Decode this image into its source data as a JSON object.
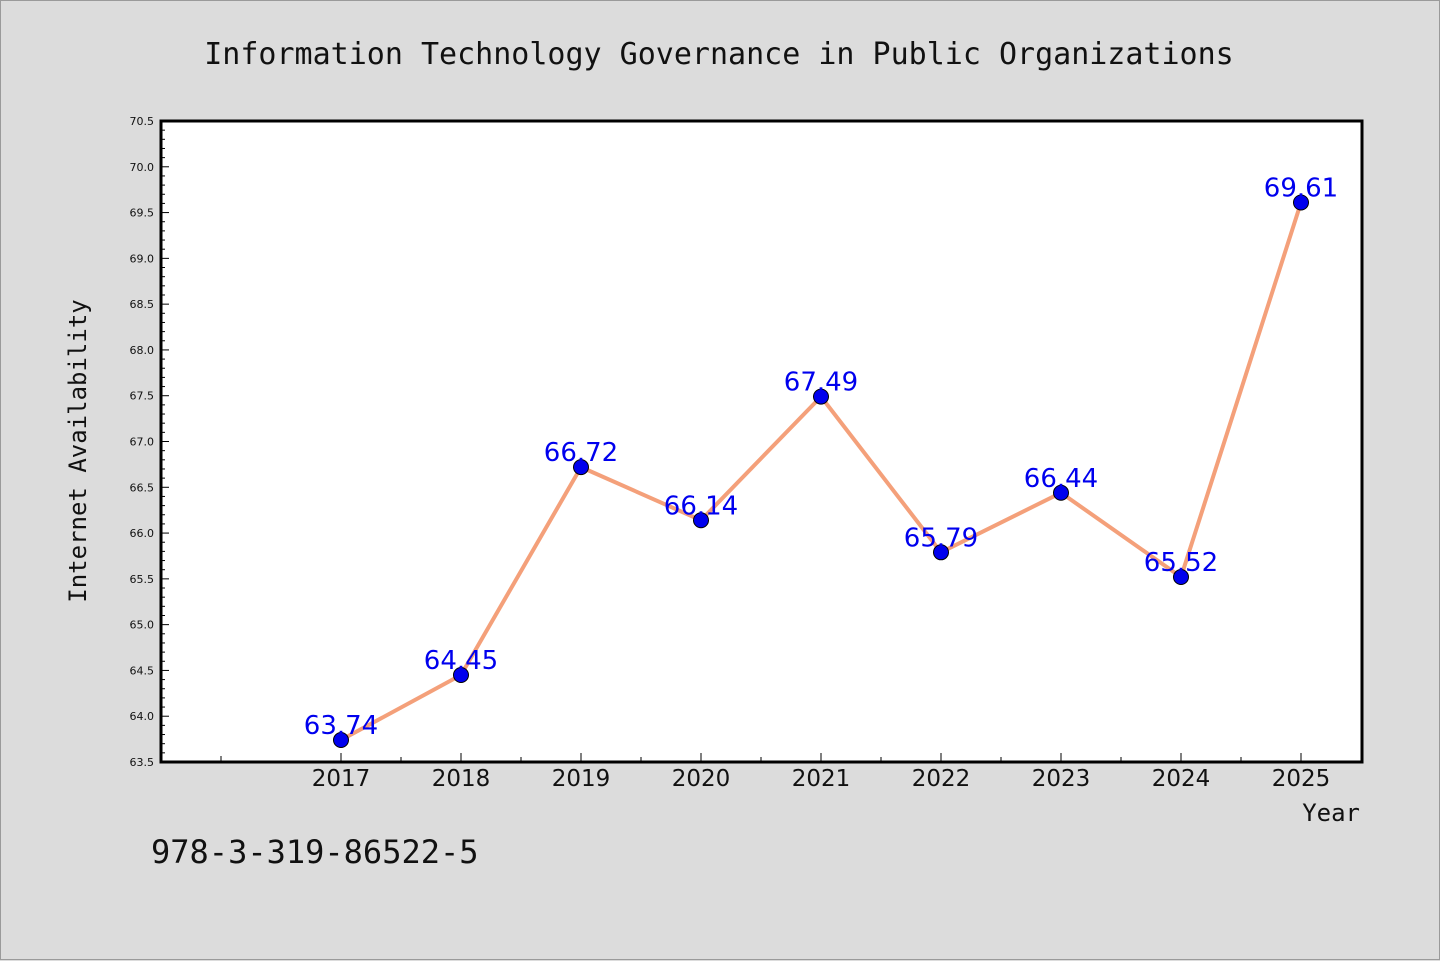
{
  "chart_data": {
    "type": "line",
    "title": "Information Technology Governance in Public Organizations",
    "xlabel": "Year",
    "ylabel": "Internet Availability",
    "categories": [
      "2017",
      "2018",
      "2019",
      "2020",
      "2021",
      "2022",
      "2023",
      "2024",
      "2025"
    ],
    "series": [
      {
        "values": [
          63.74,
          64.45,
          66.72,
          66.14,
          67.49,
          65.79,
          66.44,
          65.52,
          69.61
        ],
        "labels": [
          "63.74",
          "64.45",
          "66.72",
          "66.14",
          "67.49",
          "65.79",
          "66.44",
          "65.52",
          "69.61"
        ],
        "line_color": "#f4a07a",
        "marker_color": "#0000ee",
        "label_color": "#0000ee"
      }
    ],
    "ylim": [
      63.5,
      70.5
    ],
    "yticks": [
      "63.5",
      "64.0",
      "64.5",
      "65.0",
      "65.5",
      "66.0",
      "66.5",
      "67.0",
      "67.5",
      "68.0",
      "68.5",
      "69.0",
      "69.5",
      "70.0",
      "70.5"
    ],
    "grid": false,
    "legend": "none"
  },
  "footer": {
    "isbn": "978-3-319-86522-5"
  },
  "colors": {
    "background": "#dcdcdc",
    "plot_background": "#ffffff"
  }
}
